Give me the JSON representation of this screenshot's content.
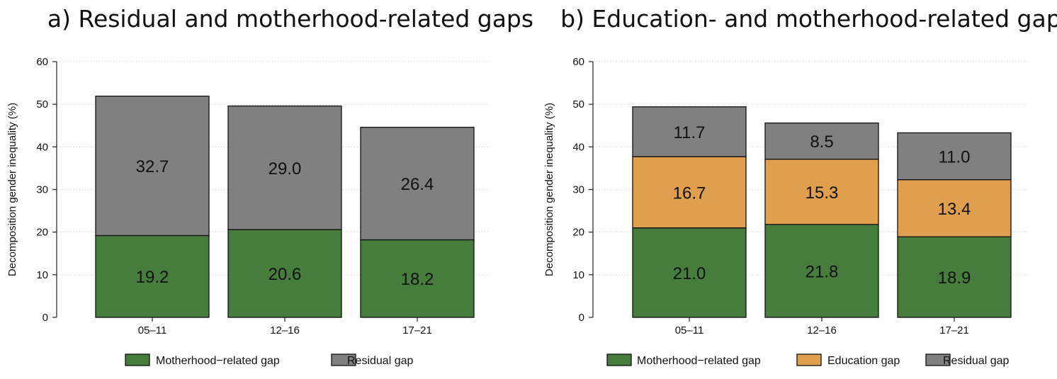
{
  "chart_data": [
    {
      "type": "bar",
      "stacked": true,
      "title": "a) Residual and motherhood-related gaps",
      "ylabel": "Decomposition gender inequality (%)",
      "ylim": [
        0,
        60
      ],
      "yticks": [
        0,
        10,
        20,
        30,
        40,
        50,
        60
      ],
      "grid": true,
      "legend_position": "bottom",
      "categories": [
        "05–11",
        "12–16",
        "17–21"
      ],
      "series": [
        {
          "name": "Motherhood−related gap",
          "color": "#467c3c",
          "values": [
            19.2,
            20.6,
            18.2
          ],
          "labels": [
            "19.2",
            "20.6",
            "18.2"
          ]
        },
        {
          "name": "Residual gap",
          "color": "#808080",
          "values": [
            32.7,
            29.0,
            26.4
          ],
          "labels": [
            "32.7",
            "29.0",
            "26.4"
          ]
        }
      ]
    },
    {
      "type": "bar",
      "stacked": true,
      "title": "b) Education- and motherhood-related gaps",
      "ylabel": "Decomposition gender inequality (%)",
      "ylim": [
        0,
        60
      ],
      "yticks": [
        0,
        10,
        20,
        30,
        40,
        50,
        60
      ],
      "grid": true,
      "legend_position": "bottom",
      "categories": [
        "05–11",
        "12–16",
        "17–21"
      ],
      "series": [
        {
          "name": "Motherhood−related gap",
          "color": "#467c3c",
          "values": [
            21.0,
            21.8,
            18.9
          ],
          "labels": [
            "21.0",
            "21.8",
            "18.9"
          ]
        },
        {
          "name": "Education gap",
          "color": "#df9f4f",
          "values": [
            16.7,
            15.3,
            13.4
          ],
          "labels": [
            "16.7",
            "15.3",
            "13.4"
          ]
        },
        {
          "name": "Residual gap",
          "color": "#808080",
          "values": [
            11.7,
            8.5,
            11.0
          ],
          "labels": [
            "11.7",
            "8.5",
            "11.0"
          ]
        }
      ]
    }
  ]
}
